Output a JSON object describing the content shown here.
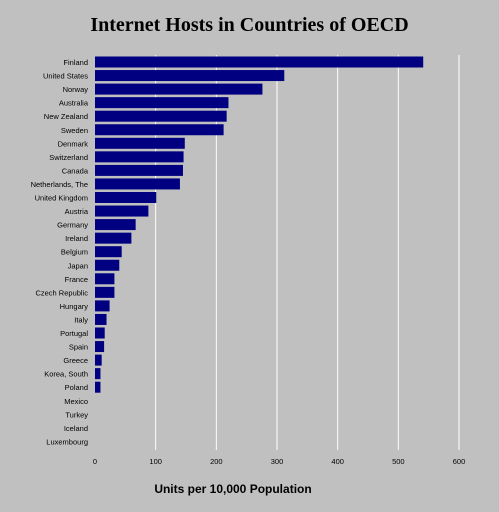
{
  "chart_data": {
    "type": "bar",
    "orientation": "horizontal",
    "title": "Internet Hosts in Countries of  OECD",
    "xlabel": "Units per 10,000 Population",
    "xlim": [
      0,
      600
    ],
    "xticks": [
      0,
      100,
      200,
      300,
      400,
      500,
      600
    ],
    "grid": "vertical",
    "bar_color": "#000080",
    "background_color": "#c0c0c0",
    "grid_color": "#ffffff",
    "categories": [
      "Finland",
      "United States",
      "Norway",
      "Australia",
      "New Zealand",
      "Sweden",
      "Denmark",
      "Switzerland",
      "Canada",
      "Netherlands, The",
      "United Kingdom",
      "Austria",
      "Germany",
      "Ireland",
      "Belgium",
      "Japan",
      "France",
      "Czech Republic",
      "Hungary",
      "Italy",
      "Portugal",
      "Spain",
      "Greece",
      "Korea, South",
      "Poland",
      "Mexico",
      "Turkey",
      "Iceland",
      "Luxembourg"
    ],
    "values": [
      541,
      312,
      276,
      220,
      217,
      212,
      148,
      146,
      145,
      140,
      101,
      88,
      67,
      60,
      44,
      40,
      32,
      32,
      24,
      19,
      16,
      15,
      11,
      9,
      9,
      0,
      0,
      0,
      0
    ]
  }
}
